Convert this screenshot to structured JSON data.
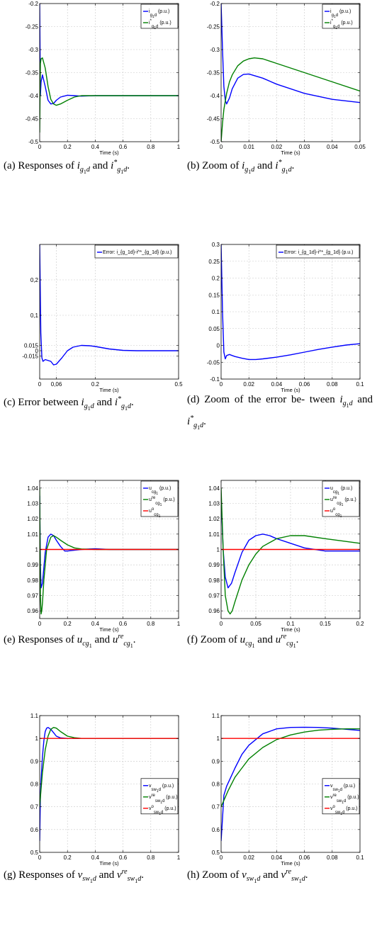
{
  "figure": {
    "captions": [
      {
        "label": "(a)",
        "text": "Responses of",
        "v1": "i",
        "v1sub": "g",
        "v1subsub": "1",
        "v1tail": "d",
        "conj": "and",
        "v2": "i",
        "v2sup": "*",
        "v2sub": "g",
        "v2subsub": "1",
        "v2tail": "d",
        "end": "."
      },
      {
        "label": "(b)",
        "text": "Zoom of",
        "v1": "i",
        "v1sub": "g",
        "v1subsub": "1",
        "v1tail": "d",
        "conj": "and",
        "v2": "i",
        "v2sup": "*",
        "v2sub": "g",
        "v2subsub": "1",
        "v2tail": "d",
        "end": "."
      },
      {
        "label": "(c)",
        "text": "Error between",
        "v1": "i",
        "v1sub": "g",
        "v1subsub": "1",
        "v1tail": "d",
        "conj": "and",
        "v2": "i",
        "v2sup": "*",
        "v2sub": "g",
        "v2subsub": "1",
        "v2tail": "d",
        "end": "."
      },
      {
        "label": "(d)",
        "text": "Zoom of the error be- tween",
        "v1": "i",
        "v1sub": "g",
        "v1subsub": "1",
        "v1tail": "d",
        "conj": "and",
        "v2": "i",
        "v2sup": "*",
        "v2sub": "g",
        "v2subsub": "1",
        "v2tail": "d",
        "end": "."
      },
      {
        "label": "(e)",
        "text": "Responses of",
        "v1": "u",
        "v1sub": "cg",
        "v1subsub": "1",
        "v1tail": "",
        "conj": "and",
        "v2": "u",
        "v2sup": "re",
        "v2sub": "cg",
        "v2subsub": "1",
        "v2tail": "",
        "end": "."
      },
      {
        "label": "(f)",
        "text": "Zoom of",
        "v1": "u",
        "v1sub": "cg",
        "v1subsub": "1",
        "v1tail": "",
        "conj": "and",
        "v2": "u",
        "v2sup": "re",
        "v2sub": "cg",
        "v2subsub": "1",
        "v2tail": "",
        "end": "."
      },
      {
        "label": "(g)",
        "text": "Responses of",
        "v1": "v",
        "v1sub": "sw",
        "v1subsub": "1",
        "v1tail": "d",
        "conj": "and",
        "v2": "v",
        "v2sup": "re",
        "v2sub": "sw",
        "v2subsub": "1",
        "v2tail": "d",
        "end": "."
      },
      {
        "label": "(h)",
        "text": "Zoom of",
        "v1": "v",
        "v1sub": "sw",
        "v1subsub": "1",
        "v1tail": "d",
        "conj": "and",
        "v2": "v",
        "v2sup": "re",
        "v2sub": "sw",
        "v2subsub": "1",
        "v2tail": "d",
        "end": "."
      }
    ]
  },
  "colors": {
    "blue": "#0000ff",
    "green": "#008000",
    "red": "#ff0000",
    "grid": "#c8c8c8"
  },
  "chart_data": [
    {
      "id": "a",
      "type": "line",
      "xlabel": "Time (s)",
      "ylabel": "",
      "xlim": [
        0,
        1
      ],
      "ylim": [
        -0.5,
        -0.2
      ],
      "xticks": [
        0,
        0.2,
        0.4,
        0.6,
        0.8,
        1
      ],
      "xticklabels": [
        "0",
        "0.2",
        "0.4",
        "0.6",
        "0.8",
        "1"
      ],
      "yticks": [
        -0.5,
        -0.45,
        -0.4,
        -0.35,
        -0.3,
        -0.25,
        -0.2
      ],
      "yticklabels": [
        "-0.5",
        "-0.45",
        "-0.4",
        "-0.35",
        "-0.3",
        "-0.25",
        "-0.2"
      ],
      "grid": true,
      "legend": "top-right",
      "series": [
        {
          "name": "i_{g_1d} (p.u.)",
          "color": "blue",
          "x": [
            0,
            0.005,
            0.01,
            0.02,
            0.04,
            0.06,
            0.08,
            0.1,
            0.12,
            0.15,
            0.2,
            0.25,
            0.3,
            0.4,
            0.6,
            1
          ],
          "y": [
            -0.2,
            -0.4,
            -0.37,
            -0.355,
            -0.38,
            -0.41,
            -0.418,
            -0.417,
            -0.41,
            -0.403,
            -0.399,
            -0.4,
            -0.401,
            -0.4,
            -0.4,
            -0.4
          ]
        },
        {
          "name": "i^*_{g_1d} (p.u.)",
          "color": "green",
          "x": [
            0,
            0.005,
            0.01,
            0.02,
            0.04,
            0.06,
            0.08,
            0.1,
            0.12,
            0.15,
            0.2,
            0.25,
            0.3,
            0.4,
            0.6,
            1
          ],
          "y": [
            -0.48,
            -0.33,
            -0.32,
            -0.318,
            -0.34,
            -0.38,
            -0.408,
            -0.418,
            -0.421,
            -0.418,
            -0.41,
            -0.403,
            -0.4,
            -0.4,
            -0.4,
            -0.4
          ]
        }
      ]
    },
    {
      "id": "b",
      "type": "line",
      "xlabel": "Time (s)",
      "ylabel": "",
      "xlim": [
        0,
        0.05
      ],
      "ylim": [
        -0.5,
        -0.2
      ],
      "xticks": [
        0,
        0.01,
        0.02,
        0.03,
        0.04,
        0.05
      ],
      "xticklabels": [
        "0",
        "0.01",
        "0.02",
        "0.03",
        "0.04",
        "0.05"
      ],
      "yticks": [
        -0.5,
        -0.45,
        -0.4,
        -0.35,
        -0.3,
        -0.25,
        -0.2
      ],
      "yticklabels": [
        "-0.5",
        "-0.45",
        "-0.4",
        "-0.35",
        "-0.3",
        "-0.25",
        "-0.2"
      ],
      "grid": true,
      "legend": "top-right",
      "series": [
        {
          "name": "i_{g_1d} (p.u.)",
          "color": "blue",
          "x": [
            0,
            0.0005,
            0.001,
            0.0015,
            0.002,
            0.003,
            0.004,
            0.006,
            0.008,
            0.01,
            0.015,
            0.02,
            0.03,
            0.04,
            0.05
          ],
          "y": [
            -0.2,
            -0.3,
            -0.38,
            -0.41,
            -0.418,
            -0.405,
            -0.385,
            -0.362,
            -0.354,
            -0.353,
            -0.362,
            -0.375,
            -0.395,
            -0.408,
            -0.415
          ]
        },
        {
          "name": "i^*_{g_1d} (p.u.)",
          "color": "green",
          "x": [
            0,
            0.0005,
            0.001,
            0.002,
            0.003,
            0.004,
            0.006,
            0.008,
            0.01,
            0.012,
            0.015,
            0.02,
            0.03,
            0.04,
            0.05
          ],
          "y": [
            -0.5,
            -0.46,
            -0.43,
            -0.395,
            -0.37,
            -0.355,
            -0.335,
            -0.325,
            -0.32,
            -0.318,
            -0.32,
            -0.33,
            -0.35,
            -0.37,
            -0.39
          ]
        }
      ]
    },
    {
      "id": "c",
      "type": "line",
      "xlabel": "Time (s)",
      "ylabel": "",
      "xlim": [
        0,
        0.5
      ],
      "ylim": [
        -0.08,
        0.3
      ],
      "xticks": [
        0,
        0.06,
        0.2,
        0.5
      ],
      "xticklabels": [
        "0",
        "0,06",
        "0.2",
        "0.5"
      ],
      "yticks": [
        -0.015,
        0,
        0.015,
        0.1,
        0.2
      ],
      "yticklabels": [
        "-0.015",
        "0",
        "0.015",
        "0,1",
        "0,2"
      ],
      "grid": true,
      "legend": "top-right",
      "series": [
        {
          "name": "Error: i_{g_1d}-i^*_{g_1d} (p.u.)",
          "color": "blue",
          "x": [
            0,
            0.004,
            0.008,
            0.012,
            0.02,
            0.04,
            0.05,
            0.06,
            0.08,
            0.1,
            0.12,
            0.15,
            0.18,
            0.2,
            0.25,
            0.3,
            0.35,
            0.4,
            0.5
          ],
          "y": [
            0.3,
            0.05,
            -0.02,
            -0.03,
            -0.025,
            -0.03,
            -0.04,
            -0.038,
            -0.02,
            0,
            0.01,
            0.015,
            0.014,
            0.012,
            0.005,
            0.001,
            0,
            0,
            0
          ]
        }
      ]
    },
    {
      "id": "d",
      "type": "line",
      "xlabel": "Time (s)",
      "ylabel": "",
      "xlim": [
        0,
        0.1
      ],
      "ylim": [
        -0.1,
        0.3
      ],
      "xticks": [
        0,
        0.02,
        0.04,
        0.06,
        0.08,
        0.1
      ],
      "xticklabels": [
        "0",
        "0.02",
        "0.04",
        "0.06",
        "0.08",
        "0.1"
      ],
      "yticks": [
        -0.1,
        -0.05,
        0,
        0.05,
        0.1,
        0.15,
        0.2,
        0.25,
        0.3
      ],
      "yticklabels": [
        "-0.1",
        "-0.05",
        "0",
        "0.05",
        "0.1",
        "0.15",
        "0.2",
        "0.25",
        "0.3"
      ],
      "grid": true,
      "legend": "top-right",
      "series": [
        {
          "name": "Error: i_{g_1d}-i^*_{g_1d} (p.u.)",
          "color": "blue",
          "x": [
            0,
            0.001,
            0.002,
            0.003,
            0.004,
            0.006,
            0.008,
            0.01,
            0.015,
            0.02,
            0.025,
            0.03,
            0.04,
            0.05,
            0.06,
            0.07,
            0.08,
            0.09,
            0.1
          ],
          "y": [
            0.3,
            0.1,
            -0.02,
            -0.04,
            -0.03,
            -0.027,
            -0.03,
            -0.033,
            -0.038,
            -0.042,
            -0.042,
            -0.04,
            -0.035,
            -0.028,
            -0.02,
            -0.012,
            -0.005,
            0.001,
            0.005
          ]
        }
      ]
    },
    {
      "id": "e",
      "type": "line",
      "xlabel": "Time (s)",
      "ylabel": "",
      "xlim": [
        0,
        1
      ],
      "ylim": [
        0.955,
        1.045
      ],
      "xticks": [
        0,
        0.2,
        0.4,
        0.6,
        0.8,
        1
      ],
      "xticklabels": [
        "0",
        "0.2",
        "0.4",
        "0.6",
        "0.8",
        "1"
      ],
      "yticks": [
        0.96,
        0.97,
        0.98,
        0.99,
        1,
        1.01,
        1.02,
        1.03,
        1.04
      ],
      "yticklabels": [
        "0.96",
        "0.97",
        "0.98",
        "0.99",
        "1",
        "1.01",
        "1.02",
        "1.03",
        "1.04"
      ],
      "grid": true,
      "legend": "top-right",
      "series": [
        {
          "name": "u_{cg_1} (p.u.)",
          "color": "blue",
          "x": [
            0,
            0.005,
            0.01,
            0.02,
            0.04,
            0.06,
            0.08,
            0.1,
            0.12,
            0.15,
            0.18,
            0.2,
            0.25,
            0.3,
            0.4,
            0.5,
            1
          ],
          "y": [
            1.035,
            0.99,
            0.975,
            0.978,
            0.998,
            1.008,
            1.01,
            1.009,
            1.006,
            1.002,
            0.999,
            0.999,
            0.9995,
            1.0,
            1.0005,
            1.0,
            1.0
          ]
        },
        {
          "name": "u^{re}_{cg_1} (p.u.)",
          "color": "green",
          "x": [
            0,
            0.005,
            0.01,
            0.015,
            0.02,
            0.03,
            0.05,
            0.08,
            0.1,
            0.12,
            0.15,
            0.2,
            0.25,
            0.3,
            0.4,
            0.6,
            1
          ],
          "y": [
            1.04,
            0.97,
            0.958,
            0.96,
            0.965,
            0.98,
            1.0,
            1.008,
            1.009,
            1.008,
            1.006,
            1.003,
            1.001,
            1.0003,
            1.0,
            1.0,
            1.0
          ]
        },
        {
          "name": "u^o_{cg_1}",
          "color": "red",
          "x": [
            0,
            1
          ],
          "y": [
            1,
            1
          ]
        }
      ]
    },
    {
      "id": "f",
      "type": "line",
      "xlabel": "Time (s)",
      "ylabel": "",
      "xlim": [
        0,
        0.2
      ],
      "ylim": [
        0.955,
        1.045
      ],
      "xticks": [
        0,
        0.05,
        0.1,
        0.15,
        0.2
      ],
      "xticklabels": [
        "0",
        "0.05",
        "0.1",
        "0.15",
        "0.2"
      ],
      "yticks": [
        0.96,
        0.97,
        0.98,
        0.99,
        1,
        1.01,
        1.02,
        1.03,
        1.04
      ],
      "yticklabels": [
        "0.96",
        "0.97",
        "0.98",
        "0.99",
        "1",
        "1.01",
        "1.02",
        "1.03",
        "1.04"
      ],
      "grid": true,
      "legend": "top-right",
      "series": [
        {
          "name": "u_{cg_1} (p.u.)",
          "color": "blue",
          "x": [
            0,
            0.003,
            0.006,
            0.01,
            0.015,
            0.02,
            0.03,
            0.04,
            0.05,
            0.06,
            0.07,
            0.08,
            0.1,
            0.12,
            0.15,
            0.2
          ],
          "y": [
            1.035,
            1.0,
            0.982,
            0.975,
            0.978,
            0.985,
            0.998,
            1.006,
            1.009,
            1.01,
            1.009,
            1.007,
            1.004,
            1.001,
            0.999,
            0.999
          ]
        },
        {
          "name": "u^{re}_{cg_1} (p.u.)",
          "color": "green",
          "x": [
            0,
            0.003,
            0.006,
            0.01,
            0.013,
            0.016,
            0.02,
            0.03,
            0.04,
            0.05,
            0.06,
            0.08,
            0.1,
            0.12,
            0.15,
            0.2
          ],
          "y": [
            1.04,
            1.0,
            0.97,
            0.96,
            0.958,
            0.96,
            0.966,
            0.98,
            0.99,
            0.997,
            1.002,
            1.007,
            1.009,
            1.009,
            1.007,
            1.004
          ]
        },
        {
          "name": "u^o_{cg_1}",
          "color": "red",
          "x": [
            0,
            0.2
          ],
          "y": [
            1,
            1
          ]
        }
      ]
    },
    {
      "id": "g",
      "type": "line",
      "xlabel": "Time (s)",
      "ylabel": "",
      "xlim": [
        0,
        1
      ],
      "ylim": [
        0.5,
        1.1
      ],
      "xticks": [
        0,
        0.2,
        0.4,
        0.6,
        0.8,
        1
      ],
      "xticklabels": [
        "0",
        "0.2",
        "0.4",
        "0.6",
        "0.8",
        "1"
      ],
      "yticks": [
        0.5,
        0.6,
        0.7,
        0.8,
        0.9,
        1,
        1.1
      ],
      "yticklabels": [
        "0.5",
        "0.6",
        "0.7",
        "0.8",
        "0.9",
        "1",
        "1.1"
      ],
      "grid": true,
      "legend": "center-right",
      "series": [
        {
          "name": "v_{sw_1d} (p.u.)",
          "color": "blue",
          "x": [
            0,
            0.005,
            0.01,
            0.02,
            0.03,
            0.04,
            0.05,
            0.06,
            0.08,
            0.1,
            0.12,
            0.15,
            0.2,
            0.3,
            1
          ],
          "y": [
            0.55,
            0.75,
            0.82,
            0.92,
            0.99,
            1.03,
            1.045,
            1.048,
            1.04,
            1.025,
            1.01,
            1.002,
            1.0,
            1.0,
            1.0
          ]
        },
        {
          "name": "v^{re}_{sw_1d} (p.u.)",
          "color": "green",
          "x": [
            0,
            0.01,
            0.02,
            0.04,
            0.06,
            0.08,
            0.1,
            0.12,
            0.15,
            0.2,
            0.25,
            0.3,
            0.4,
            1
          ],
          "y": [
            0.7,
            0.78,
            0.85,
            0.95,
            1.01,
            1.04,
            1.048,
            1.045,
            1.03,
            1.01,
            1.003,
            1.0,
            1.0,
            1.0
          ]
        },
        {
          "name": "v^o_{sw_1d} (p.u.)",
          "color": "red",
          "x": [
            0,
            1
          ],
          "y": [
            1,
            1
          ]
        }
      ]
    },
    {
      "id": "h",
      "type": "line",
      "xlabel": "Time (s)",
      "ylabel": "",
      "xlim": [
        0,
        0.1
      ],
      "ylim": [
        0.5,
        1.1
      ],
      "xticks": [
        0,
        0.02,
        0.04,
        0.06,
        0.08,
        0.1
      ],
      "xticklabels": [
        "0",
        "0.02",
        "0.04",
        "0.06",
        "0.08",
        "0.1"
      ],
      "yticks": [
        0.5,
        0.6,
        0.7,
        0.8,
        0.9,
        1,
        1.1
      ],
      "yticklabels": [
        "0.5",
        "0.6",
        "0.7",
        "0.8",
        "0.9",
        "1",
        "1.1"
      ],
      "grid": true,
      "legend": "center-right",
      "series": [
        {
          "name": "v_{sw_1d} (p.u.)",
          "color": "blue",
          "x": [
            0,
            0.001,
            0.002,
            0.004,
            0.007,
            0.01,
            0.015,
            0.02,
            0.03,
            0.04,
            0.05,
            0.06,
            0.07,
            0.08,
            0.09,
            0.1
          ],
          "y": [
            0.55,
            0.65,
            0.75,
            0.79,
            0.83,
            0.87,
            0.93,
            0.97,
            1.02,
            1.042,
            1.048,
            1.049,
            1.048,
            1.045,
            1.04,
            1.035
          ]
        },
        {
          "name": "v^{re}_{sw_1d} (p.u.)",
          "color": "green",
          "x": [
            0,
            0.005,
            0.01,
            0.015,
            0.02,
            0.03,
            0.04,
            0.05,
            0.06,
            0.07,
            0.08,
            0.09,
            0.1
          ],
          "y": [
            0.7,
            0.77,
            0.83,
            0.87,
            0.91,
            0.96,
            0.995,
            1.015,
            1.028,
            1.036,
            1.04,
            1.042,
            1.042
          ]
        },
        {
          "name": "v^o_{sw_1d} (p.u.)",
          "color": "red",
          "x": [
            0,
            0.1
          ],
          "y": [
            1,
            1
          ]
        }
      ]
    }
  ]
}
